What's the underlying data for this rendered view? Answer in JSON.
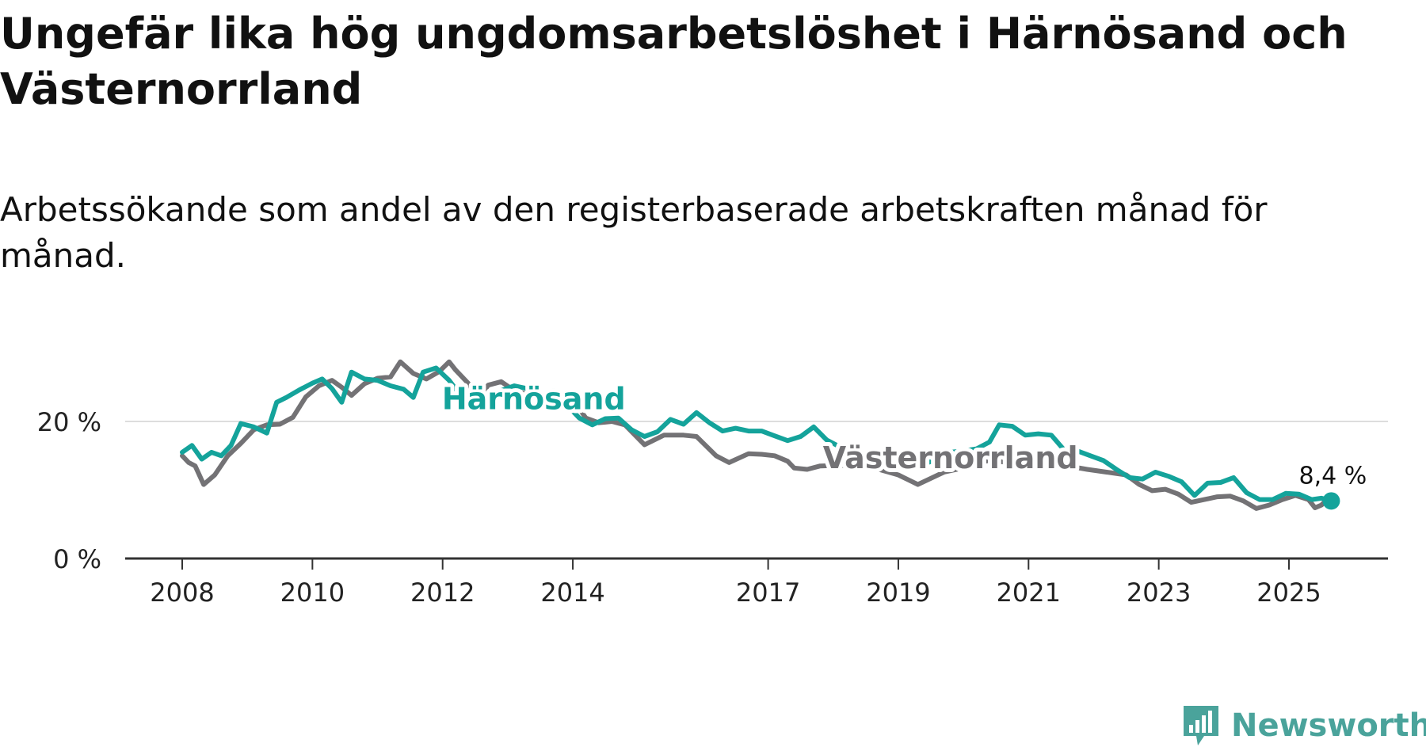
{
  "title": "Ungefär lika hög ungdomsarbetslöshet i Härnösand och Västernorrland",
  "subtitle": "Arbetssökande som andel av den registerbaserade arbetskraften månad för månad.",
  "logo": {
    "text": "Newsworthy",
    "icon": "newsworthy-logo-icon"
  },
  "colors": {
    "harnosand": "#14a39b",
    "vasternorrland": "#737275",
    "grid": "#dddddd",
    "axis": "#333333"
  },
  "chart_data": {
    "type": "line",
    "title": "Ungefär lika hög ungdomsarbetslöshet i Härnösand och Västernorrland",
    "xlabel": "",
    "ylabel": "",
    "xlim": [
      2008,
      2026
    ],
    "ylim": [
      0,
      30
    ],
    "y_ticks": [
      {
        "value": 0,
        "label": "0 %"
      },
      {
        "value": 20,
        "label": "20 %"
      }
    ],
    "x_ticks": [
      {
        "value": 2008,
        "label": "2008"
      },
      {
        "value": 2010,
        "label": "2010"
      },
      {
        "value": 2012,
        "label": "2012"
      },
      {
        "value": 2014,
        "label": "2014"
      },
      {
        "value": 2017,
        "label": "2017"
      },
      {
        "value": 2019,
        "label": "2019"
      },
      {
        "value": 2021,
        "label": "2021"
      },
      {
        "value": 2023,
        "label": "2023"
      },
      {
        "value": 2025,
        "label": "2025"
      }
    ],
    "series": [
      {
        "name": "Västernorrland",
        "key": "vasternorrland",
        "label_at": {
          "x": 2019.8,
          "y": 13.2
        },
        "points": [
          [
            2008.0,
            15.0
          ],
          [
            2008.1,
            14.0
          ],
          [
            2008.2,
            13.5
          ],
          [
            2008.33,
            10.8
          ],
          [
            2008.5,
            12.2
          ],
          [
            2008.7,
            15.0
          ],
          [
            2008.9,
            16.8
          ],
          [
            2009.1,
            18.8
          ],
          [
            2009.3,
            19.5
          ],
          [
            2009.5,
            19.6
          ],
          [
            2009.7,
            20.6
          ],
          [
            2009.9,
            23.6
          ],
          [
            2010.1,
            25.2
          ],
          [
            2010.3,
            26.0
          ],
          [
            2010.45,
            25.0
          ],
          [
            2010.6,
            23.8
          ],
          [
            2010.8,
            25.5
          ],
          [
            2011.0,
            26.3
          ],
          [
            2011.2,
            26.5
          ],
          [
            2011.35,
            28.7
          ],
          [
            2011.55,
            27.0
          ],
          [
            2011.75,
            26.2
          ],
          [
            2011.95,
            27.3
          ],
          [
            2012.1,
            28.7
          ],
          [
            2012.2,
            27.5
          ],
          [
            2012.4,
            25.5
          ],
          [
            2012.55,
            23.2
          ],
          [
            2012.7,
            25.3
          ],
          [
            2012.9,
            25.8
          ],
          [
            2013.1,
            24.5
          ],
          [
            2013.3,
            24.0
          ],
          [
            2013.6,
            23.8
          ],
          [
            2013.8,
            24.3
          ],
          [
            2014.0,
            23.2
          ],
          [
            2014.2,
            20.5
          ],
          [
            2014.4,
            19.8
          ],
          [
            2014.6,
            20.0
          ],
          [
            2014.8,
            19.5
          ],
          [
            2015.1,
            16.6
          ],
          [
            2015.4,
            18.0
          ],
          [
            2015.7,
            18.0
          ],
          [
            2015.9,
            17.8
          ],
          [
            2016.2,
            15.0
          ],
          [
            2016.4,
            14.0
          ],
          [
            2016.7,
            15.3
          ],
          [
            2016.9,
            15.2
          ],
          [
            2017.1,
            15.0
          ],
          [
            2017.3,
            14.2
          ],
          [
            2017.4,
            13.2
          ],
          [
            2017.6,
            13.0
          ],
          [
            2017.8,
            13.5
          ],
          [
            2018.1,
            13.6
          ],
          [
            2018.4,
            13.4
          ],
          [
            2018.7,
            13.0
          ],
          [
            2019.0,
            12.2
          ],
          [
            2019.3,
            10.8
          ],
          [
            2019.5,
            11.7
          ],
          [
            2019.7,
            12.6
          ],
          [
            2019.9,
            13.0
          ],
          [
            2020.1,
            13.8
          ],
          [
            2020.4,
            14.3
          ],
          [
            2020.7,
            14.0
          ],
          [
            2021.0,
            14.1
          ],
          [
            2021.3,
            14.0
          ],
          [
            2021.6,
            13.5
          ],
          [
            2021.9,
            13.0
          ],
          [
            2022.2,
            12.6
          ],
          [
            2022.5,
            12.2
          ],
          [
            2022.7,
            10.8
          ],
          [
            2022.9,
            9.9
          ],
          [
            2023.1,
            10.1
          ],
          [
            2023.3,
            9.4
          ],
          [
            2023.5,
            8.2
          ],
          [
            2023.7,
            8.6
          ],
          [
            2023.9,
            9.0
          ],
          [
            2024.1,
            9.1
          ],
          [
            2024.3,
            8.4
          ],
          [
            2024.5,
            7.3
          ],
          [
            2024.7,
            7.8
          ],
          [
            2024.9,
            8.6
          ],
          [
            2025.1,
            9.2
          ],
          [
            2025.3,
            8.6
          ],
          [
            2025.4,
            7.4
          ],
          [
            2025.5,
            7.8
          ],
          [
            2025.6,
            8.8
          ]
        ]
      },
      {
        "name": "Härnösand",
        "key": "harnosand",
        "label_at": {
          "x": 2013.4,
          "y": 21.8
        },
        "end_label": "8,4 %",
        "end_value": 8.4,
        "points": [
          [
            2008.0,
            15.5
          ],
          [
            2008.15,
            16.5
          ],
          [
            2008.3,
            14.5
          ],
          [
            2008.45,
            15.5
          ],
          [
            2008.6,
            15.0
          ],
          [
            2008.75,
            16.5
          ],
          [
            2008.9,
            19.7
          ],
          [
            2009.1,
            19.2
          ],
          [
            2009.3,
            18.3
          ],
          [
            2009.45,
            22.8
          ],
          [
            2009.6,
            23.5
          ],
          [
            2009.8,
            24.6
          ],
          [
            2010.0,
            25.6
          ],
          [
            2010.15,
            26.2
          ],
          [
            2010.3,
            24.8
          ],
          [
            2010.45,
            22.8
          ],
          [
            2010.6,
            27.2
          ],
          [
            2010.8,
            26.2
          ],
          [
            2011.0,
            26.0
          ],
          [
            2011.2,
            25.2
          ],
          [
            2011.4,
            24.7
          ],
          [
            2011.55,
            23.5
          ],
          [
            2011.7,
            27.2
          ],
          [
            2011.9,
            27.8
          ],
          [
            2012.1,
            26.0
          ],
          [
            2012.3,
            23.5
          ],
          [
            2012.5,
            23.5
          ],
          [
            2012.7,
            23.6
          ],
          [
            2012.9,
            24.5
          ],
          [
            2013.1,
            25.2
          ],
          [
            2013.3,
            24.8
          ],
          [
            2013.5,
            23.6
          ],
          [
            2013.7,
            24.5
          ],
          [
            2013.9,
            22.5
          ],
          [
            2014.1,
            20.5
          ],
          [
            2014.3,
            19.5
          ],
          [
            2014.5,
            20.4
          ],
          [
            2014.7,
            20.5
          ],
          [
            2014.9,
            18.8
          ],
          [
            2015.1,
            17.8
          ],
          [
            2015.3,
            18.5
          ],
          [
            2015.5,
            20.3
          ],
          [
            2015.7,
            19.6
          ],
          [
            2015.9,
            21.3
          ],
          [
            2016.1,
            19.8
          ],
          [
            2016.3,
            18.6
          ],
          [
            2016.5,
            19.0
          ],
          [
            2016.7,
            18.6
          ],
          [
            2016.9,
            18.6
          ],
          [
            2017.1,
            17.9
          ],
          [
            2017.3,
            17.2
          ],
          [
            2017.5,
            17.8
          ],
          [
            2017.7,
            19.2
          ],
          [
            2017.9,
            17.3
          ],
          [
            2018.1,
            16.3
          ],
          [
            2018.3,
            16.0
          ],
          [
            2018.5,
            15.2
          ],
          [
            2018.8,
            14.3
          ],
          [
            2019.1,
            13.7
          ],
          [
            2019.4,
            13.8
          ],
          [
            2019.6,
            14.5
          ],
          [
            2019.8,
            15.5
          ],
          [
            2020.0,
            15.7
          ],
          [
            2020.2,
            16.0
          ],
          [
            2020.4,
            17.0
          ],
          [
            2020.55,
            19.5
          ],
          [
            2020.75,
            19.3
          ],
          [
            2020.95,
            18.0
          ],
          [
            2021.15,
            18.2
          ],
          [
            2021.35,
            18.0
          ],
          [
            2021.55,
            15.8
          ],
          [
            2021.75,
            15.7
          ],
          [
            2021.95,
            15.0
          ],
          [
            2022.15,
            14.3
          ],
          [
            2022.35,
            13.0
          ],
          [
            2022.55,
            11.8
          ],
          [
            2022.75,
            11.6
          ],
          [
            2022.95,
            12.6
          ],
          [
            2023.15,
            12.0
          ],
          [
            2023.35,
            11.2
          ],
          [
            2023.55,
            9.2
          ],
          [
            2023.75,
            11.0
          ],
          [
            2023.95,
            11.1
          ],
          [
            2024.15,
            11.8
          ],
          [
            2024.35,
            9.6
          ],
          [
            2024.55,
            8.6
          ],
          [
            2024.75,
            8.6
          ],
          [
            2024.95,
            9.5
          ],
          [
            2025.15,
            9.4
          ],
          [
            2025.35,
            8.6
          ],
          [
            2025.5,
            8.8
          ],
          [
            2025.65,
            8.4
          ]
        ]
      }
    ]
  }
}
